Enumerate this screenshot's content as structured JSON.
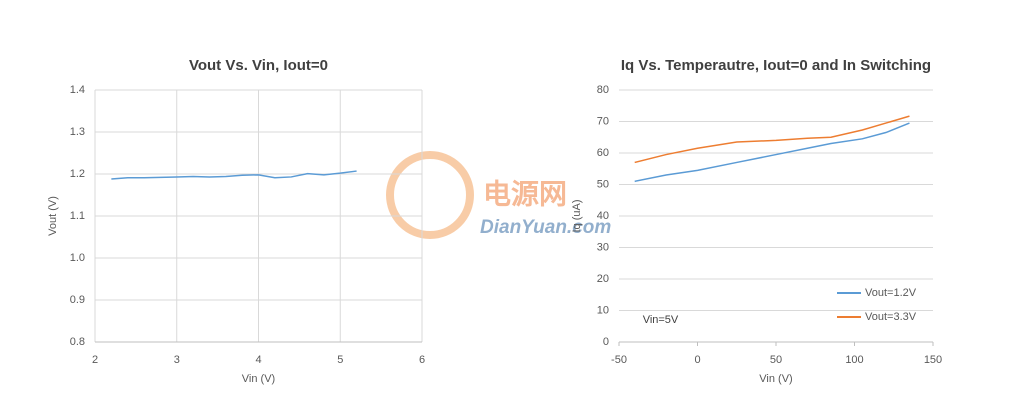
{
  "chart_data": [
    {
      "type": "line",
      "title": "Vout Vs. Vin, Iout=0",
      "xlabel": "Vin (V)",
      "ylabel": "Vout (V)",
      "x": [
        2.2,
        2.4,
        2.6,
        2.8,
        3.0,
        3.2,
        3.4,
        3.6,
        3.8,
        4.0,
        4.2,
        4.4,
        4.6,
        4.8,
        5.0,
        5.2
      ],
      "values": [
        1.188,
        1.191,
        1.191,
        1.192,
        1.193,
        1.194,
        1.193,
        1.194,
        1.197,
        1.198,
        1.191,
        1.193,
        1.201,
        1.198,
        1.202,
        1.207
      ],
      "color": "#5b9bd5",
      "xlim": [
        2,
        6
      ],
      "xticks": [
        2,
        3,
        4,
        5,
        6
      ],
      "ylim": [
        0.8,
        1.4
      ],
      "yticks": [
        0.8,
        0.9,
        {
          "value": 1,
          "label": "1.0"
        },
        1.1,
        1.2,
        1.3,
        1.4
      ],
      "grid": "both"
    },
    {
      "type": "line",
      "title": "Iq Vs. Temperautre, Iout=0 and In Switching",
      "xlabel": "Vin (V)",
      "ylabel": "Iq (uA)",
      "x": [
        -40,
        -20,
        0,
        25,
        50,
        70,
        85,
        105,
        120,
        135
      ],
      "series": [
        {
          "name": "Vout=1.2V",
          "color": "#5b9bd5",
          "values": [
            51,
            53,
            54.5,
            57,
            59.5,
            61.5,
            63,
            64.5,
            66.5,
            69.5
          ]
        },
        {
          "name": "Vout=3.3V",
          "color": "#ed7d31",
          "values": [
            57,
            59.5,
            61.5,
            63.5,
            64,
            64.7,
            65,
            67.3,
            69.5,
            71.7
          ]
        }
      ],
      "annotation": "Vin=5V",
      "xlim": [
        -50,
        150
      ],
      "xticks": [
        -50,
        0,
        50,
        100,
        150
      ],
      "ylim": [
        0,
        80
      ],
      "yticks": [
        0,
        10,
        20,
        30,
        40,
        50,
        60,
        70,
        80
      ],
      "grid": "y",
      "legend": "bottom-right"
    }
  ],
  "watermark": {
    "brand": "电源网",
    "site": "DianYuan.com"
  }
}
